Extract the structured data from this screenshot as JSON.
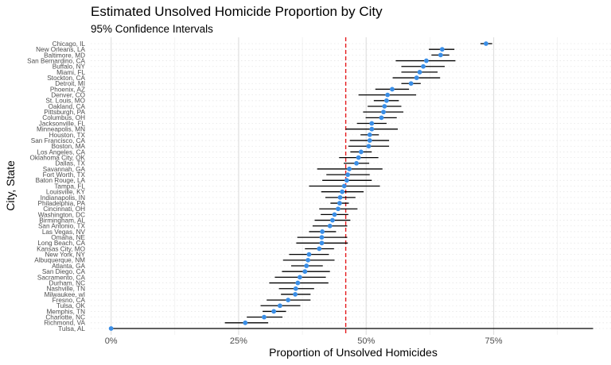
{
  "chart_data": {
    "type": "scatter",
    "title": "Estimated Unsolved Homicide Proportion by City",
    "subtitle": "95% Confidence Intervals",
    "xlabel": "Proportion of Unsolved Homicides",
    "ylabel": "City, State",
    "xlim": [
      -0.04,
      0.98
    ],
    "x_ticks": [
      0,
      0.25,
      0.5,
      0.75
    ],
    "x_tick_labels": [
      "0%",
      "25%",
      "50%",
      "75%"
    ],
    "reference_line": {
      "value": 0.46,
      "color": "#e41a1c",
      "style": "dashed"
    },
    "point_color": "#3a8ee6",
    "errorbar_color": "#000000",
    "grid": true,
    "legend": "none",
    "series": [
      {
        "points": [
          {
            "city": "Chicago, IL",
            "estimate": 0.735,
            "lower": 0.724,
            "upper": 0.747
          },
          {
            "city": "New Orleans, LA",
            "estimate": 0.649,
            "lower": 0.623,
            "upper": 0.673
          },
          {
            "city": "Baltimore, MD",
            "estimate": 0.646,
            "lower": 0.628,
            "upper": 0.663
          },
          {
            "city": "San Bernardino, CA",
            "estimate": 0.618,
            "lower": 0.558,
            "upper": 0.675
          },
          {
            "city": "Buffalo, NY",
            "estimate": 0.612,
            "lower": 0.569,
            "upper": 0.654
          },
          {
            "city": "Miami, FL",
            "estimate": 0.605,
            "lower": 0.569,
            "upper": 0.64
          },
          {
            "city": "Stockton, CA",
            "estimate": 0.599,
            "lower": 0.552,
            "upper": 0.645
          },
          {
            "city": "Detroit, MI",
            "estimate": 0.588,
            "lower": 0.569,
            "upper": 0.607
          },
          {
            "city": "Phoenix, AZ",
            "estimate": 0.551,
            "lower": 0.518,
            "upper": 0.584
          },
          {
            "city": "Denver, CO",
            "estimate": 0.542,
            "lower": 0.485,
            "upper": 0.598
          },
          {
            "city": "St. Louis, MO",
            "estimate": 0.54,
            "lower": 0.515,
            "upper": 0.564
          },
          {
            "city": "Oakland, CA",
            "estimate": 0.536,
            "lower": 0.503,
            "upper": 0.569
          },
          {
            "city": "Pittsburgh, PA",
            "estimate": 0.534,
            "lower": 0.494,
            "upper": 0.573
          },
          {
            "city": "Columbus, OH",
            "estimate": 0.53,
            "lower": 0.499,
            "upper": 0.56
          },
          {
            "city": "Jacksonville, FL",
            "estimate": 0.511,
            "lower": 0.482,
            "upper": 0.54
          },
          {
            "city": "Minneapolis, MN",
            "estimate": 0.511,
            "lower": 0.46,
            "upper": 0.562
          },
          {
            "city": "Houston, TX",
            "estimate": 0.507,
            "lower": 0.489,
            "upper": 0.525
          },
          {
            "city": "San Francisco, CA",
            "estimate": 0.507,
            "lower": 0.468,
            "upper": 0.545
          },
          {
            "city": "Boston, MA",
            "estimate": 0.505,
            "lower": 0.465,
            "upper": 0.545
          },
          {
            "city": "Los Angeles, CA",
            "estimate": 0.49,
            "lower": 0.469,
            "upper": 0.511
          },
          {
            "city": "Oklahoma City, OK",
            "estimate": 0.485,
            "lower": 0.447,
            "upper": 0.524
          },
          {
            "city": "Dallas, TX",
            "estimate": 0.481,
            "lower": 0.456,
            "upper": 0.506
          },
          {
            "city": "Savannah, GA",
            "estimate": 0.467,
            "lower": 0.404,
            "upper": 0.532
          },
          {
            "city": "Fort Worth, TX",
            "estimate": 0.464,
            "lower": 0.422,
            "upper": 0.507
          },
          {
            "city": "Baton Rouge, LA",
            "estimate": 0.462,
            "lower": 0.414,
            "upper": 0.511
          },
          {
            "city": "Tampa, FL",
            "estimate": 0.457,
            "lower": 0.388,
            "upper": 0.527
          },
          {
            "city": "Louisville, KY",
            "estimate": 0.453,
            "lower": 0.412,
            "upper": 0.495
          },
          {
            "city": "Indianapolis, IN",
            "estimate": 0.449,
            "lower": 0.42,
            "upper": 0.479
          },
          {
            "city": "Philadelphia, PA",
            "estimate": 0.448,
            "lower": 0.43,
            "upper": 0.466
          },
          {
            "city": "Cincinnati, OH",
            "estimate": 0.445,
            "lower": 0.408,
            "upper": 0.483
          },
          {
            "city": "Washington, DC",
            "estimate": 0.438,
            "lower": 0.411,
            "upper": 0.465
          },
          {
            "city": "Birmingham, AL",
            "estimate": 0.434,
            "lower": 0.399,
            "upper": 0.469
          },
          {
            "city": "San Antonio, TX",
            "estimate": 0.429,
            "lower": 0.395,
            "upper": 0.463
          },
          {
            "city": "Las Vegas, NV",
            "estimate": 0.414,
            "lower": 0.388,
            "upper": 0.441
          },
          {
            "city": "Omaha, NE",
            "estimate": 0.413,
            "lower": 0.365,
            "upper": 0.463
          },
          {
            "city": "Long Beach, CA",
            "estimate": 0.413,
            "lower": 0.363,
            "upper": 0.464
          },
          {
            "city": "Kansas City, MO",
            "estimate": 0.408,
            "lower": 0.38,
            "upper": 0.437
          },
          {
            "city": "New York, NY",
            "estimate": 0.388,
            "lower": 0.349,
            "upper": 0.427
          },
          {
            "city": "Albuquerque, NM",
            "estimate": 0.386,
            "lower": 0.337,
            "upper": 0.438
          },
          {
            "city": "Atlanta, GA",
            "estimate": 0.383,
            "lower": 0.353,
            "upper": 0.415
          },
          {
            "city": "San Diego, CA",
            "estimate": 0.38,
            "lower": 0.335,
            "upper": 0.429
          },
          {
            "city": "Sacramento, CA",
            "estimate": 0.37,
            "lower": 0.321,
            "upper": 0.421
          },
          {
            "city": "Durham, NC",
            "estimate": 0.366,
            "lower": 0.31,
            "upper": 0.426
          },
          {
            "city": "Nashville, TN",
            "estimate": 0.362,
            "lower": 0.329,
            "upper": 0.398
          },
          {
            "city": "Milwaukee, wI",
            "estimate": 0.361,
            "lower": 0.333,
            "upper": 0.391
          },
          {
            "city": "Fresno, CA",
            "estimate": 0.347,
            "lower": 0.305,
            "upper": 0.391
          },
          {
            "city": "Tulsa, OK",
            "estimate": 0.331,
            "lower": 0.293,
            "upper": 0.371
          },
          {
            "city": "Memphis, TN",
            "estimate": 0.319,
            "lower": 0.297,
            "upper": 0.343
          },
          {
            "city": "Charlotte, NC",
            "estimate": 0.3,
            "lower": 0.266,
            "upper": 0.336
          },
          {
            "city": "Richmond, VA",
            "estimate": 0.263,
            "lower": 0.223,
            "upper": 0.308
          },
          {
            "city": "Tulsa, AL",
            "estimate": 0.0,
            "lower": 0.0,
            "upper": 0.945
          }
        ]
      }
    ]
  }
}
